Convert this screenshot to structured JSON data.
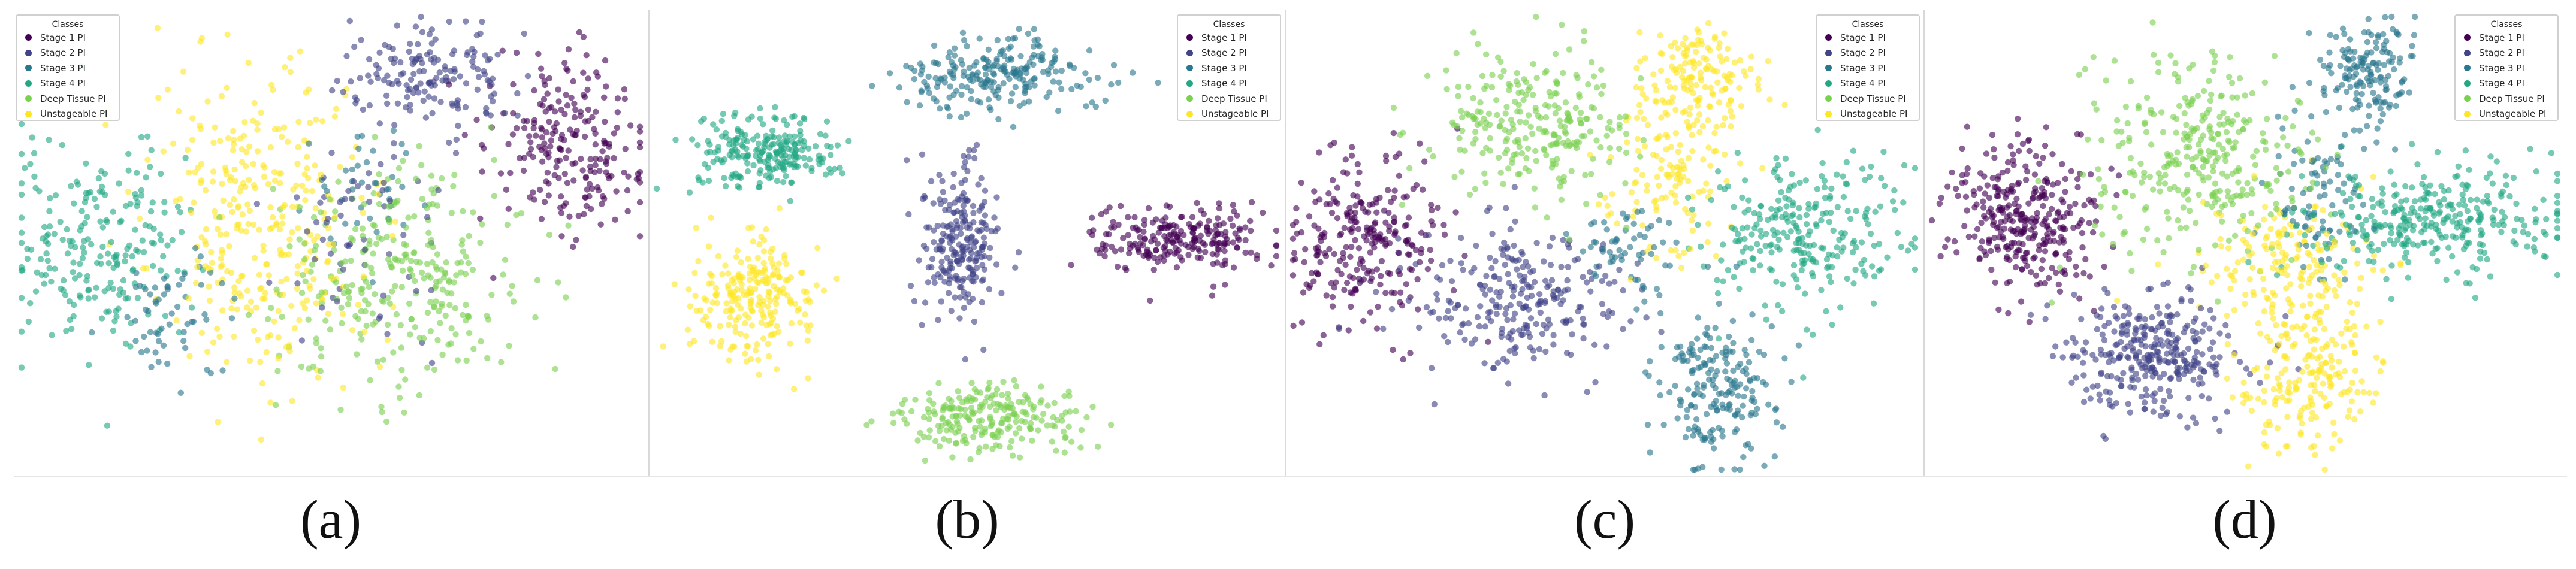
{
  "chart_data": [
    {
      "type": "scatter",
      "caption": "(a)",
      "legend": {
        "title": "Classes",
        "placement": "top-left"
      },
      "series": [
        {
          "name": "Stage 1 PI",
          "color": "#440154",
          "clusters": [
            {
              "cx": 0.88,
              "cy": 0.71,
              "sx": 0.06,
              "sy": 0.1,
              "n": 220
            }
          ]
        },
        {
          "name": "Stage 2 PI",
          "color": "#414487",
          "clusters": [
            {
              "cx": 0.66,
              "cy": 0.86,
              "sx": 0.07,
              "sy": 0.06,
              "n": 160
            },
            {
              "cx": 0.55,
              "cy": 0.5,
              "sx": 0.07,
              "sy": 0.12,
              "n": 60
            }
          ]
        },
        {
          "name": "Stage 3 PI",
          "color": "#2a788e",
          "clusters": [
            {
              "cx": 0.24,
              "cy": 0.34,
              "sx": 0.05,
              "sy": 0.07,
              "n": 60
            },
            {
              "cx": 0.55,
              "cy": 0.62,
              "sx": 0.05,
              "sy": 0.08,
              "n": 40
            }
          ]
        },
        {
          "name": "Stage 4 PI",
          "color": "#22a884",
          "clusters": [
            {
              "cx": 0.12,
              "cy": 0.5,
              "sx": 0.07,
              "sy": 0.12,
              "n": 220
            }
          ]
        },
        {
          "name": "Deep Tissue PI",
          "color": "#7ad151",
          "clusters": [
            {
              "cx": 0.62,
              "cy": 0.42,
              "sx": 0.1,
              "sy": 0.13,
              "n": 300
            }
          ]
        },
        {
          "name": "Unstageable PI",
          "color": "#fde725",
          "clusters": [
            {
              "cx": 0.38,
              "cy": 0.55,
              "sx": 0.09,
              "sy": 0.18,
              "n": 320
            }
          ]
        }
      ],
      "xlim": [
        0,
        1
      ],
      "ylim": [
        0,
        1
      ],
      "grid": false
    },
    {
      "type": "scatter",
      "caption": "(b)",
      "legend": {
        "title": "Classes",
        "placement": "top-right"
      },
      "series": [
        {
          "name": "Stage 1 PI",
          "color": "#440154",
          "clusters": [
            {
              "cx": 0.84,
              "cy": 0.51,
              "sx": 0.07,
              "sy": 0.035,
              "n": 230
            }
          ]
        },
        {
          "name": "Stage 2 PI",
          "color": "#414487",
          "clusters": [
            {
              "cx": 0.49,
              "cy": 0.51,
              "sx": 0.03,
              "sy": 0.09,
              "n": 230
            }
          ]
        },
        {
          "name": "Stage 3 PI",
          "color": "#2a788e",
          "clusters": [
            {
              "cx": 0.55,
              "cy": 0.87,
              "sx": 0.08,
              "sy": 0.04,
              "n": 230
            }
          ]
        },
        {
          "name": "Stage 4 PI",
          "color": "#22a884",
          "clusters": [
            {
              "cx": 0.17,
              "cy": 0.7,
              "sx": 0.06,
              "sy": 0.04,
              "n": 230
            }
          ]
        },
        {
          "name": "Deep Tissue PI",
          "color": "#7ad151",
          "clusters": [
            {
              "cx": 0.53,
              "cy": 0.12,
              "sx": 0.07,
              "sy": 0.04,
              "n": 230
            }
          ]
        },
        {
          "name": "Unstageable PI",
          "color": "#fde725",
          "clusters": [
            {
              "cx": 0.16,
              "cy": 0.38,
              "sx": 0.05,
              "sy": 0.07,
              "n": 230
            }
          ]
        }
      ],
      "xlim": [
        0,
        1
      ],
      "ylim": [
        0,
        1
      ],
      "grid": false
    },
    {
      "type": "scatter",
      "caption": "(c)",
      "legend": {
        "title": "Classes",
        "placement": "top-right"
      },
      "series": [
        {
          "name": "Stage 1 PI",
          "color": "#440154",
          "clusters": [
            {
              "cx": 0.12,
              "cy": 0.52,
              "sx": 0.06,
              "sy": 0.1,
              "n": 260
            }
          ]
        },
        {
          "name": "Stage 2 PI",
          "color": "#414487",
          "clusters": [
            {
              "cx": 0.37,
              "cy": 0.37,
              "sx": 0.09,
              "sy": 0.08,
              "n": 260
            }
          ]
        },
        {
          "name": "Stage 3 PI",
          "color": "#2a788e",
          "clusters": [
            {
              "cx": 0.68,
              "cy": 0.18,
              "sx": 0.05,
              "sy": 0.08,
              "n": 200
            },
            {
              "cx": 0.55,
              "cy": 0.48,
              "sx": 0.05,
              "sy": 0.05,
              "n": 60
            }
          ]
        },
        {
          "name": "Stage 4 PI",
          "color": "#22a884",
          "clusters": [
            {
              "cx": 0.82,
              "cy": 0.52,
              "sx": 0.08,
              "sy": 0.09,
              "n": 260
            }
          ]
        },
        {
          "name": "Deep Tissue PI",
          "color": "#7ad151",
          "clusters": [
            {
              "cx": 0.38,
              "cy": 0.76,
              "sx": 0.08,
              "sy": 0.09,
              "n": 260
            }
          ]
        },
        {
          "name": "Unstageable PI",
          "color": "#fde725",
          "clusters": [
            {
              "cx": 0.66,
              "cy": 0.86,
              "sx": 0.05,
              "sy": 0.06,
              "n": 150
            },
            {
              "cx": 0.6,
              "cy": 0.64,
              "sx": 0.06,
              "sy": 0.08,
              "n": 120
            }
          ]
        }
      ],
      "xlim": [
        0,
        1
      ],
      "ylim": [
        0,
        1
      ],
      "grid": false
    },
    {
      "type": "scatter",
      "caption": "(d)",
      "legend": {
        "title": "Classes",
        "placement": "top-right"
      },
      "series": [
        {
          "name": "Stage 1 PI",
          "color": "#440154",
          "clusters": [
            {
              "cx": 0.15,
              "cy": 0.56,
              "sx": 0.06,
              "sy": 0.08,
              "n": 320
            }
          ]
        },
        {
          "name": "Stage 2 PI",
          "color": "#414487",
          "clusters": [
            {
              "cx": 0.35,
              "cy": 0.25,
              "sx": 0.07,
              "sy": 0.07,
              "n": 320
            }
          ]
        },
        {
          "name": "Stage 3 PI",
          "color": "#2a788e",
          "clusters": [
            {
              "cx": 0.7,
              "cy": 0.88,
              "sx": 0.04,
              "sy": 0.06,
              "n": 160
            },
            {
              "cx": 0.62,
              "cy": 0.6,
              "sx": 0.04,
              "sy": 0.07,
              "n": 80
            }
          ]
        },
        {
          "name": "Stage 4 PI",
          "color": "#22a884",
          "clusters": [
            {
              "cx": 0.8,
              "cy": 0.55,
              "sx": 0.1,
              "sy": 0.06,
              "n": 320
            }
          ]
        },
        {
          "name": "Deep Tissue PI",
          "color": "#7ad151",
          "clusters": [
            {
              "cx": 0.43,
              "cy": 0.68,
              "sx": 0.09,
              "sy": 0.12,
              "n": 320
            }
          ]
        },
        {
          "name": "Unstageable PI",
          "color": "#fde725",
          "clusters": [
            {
              "cx": 0.6,
              "cy": 0.22,
              "sx": 0.06,
              "sy": 0.08,
              "n": 200
            },
            {
              "cx": 0.57,
              "cy": 0.45,
              "sx": 0.08,
              "sy": 0.07,
              "n": 160
            }
          ]
        }
      ],
      "xlim": [
        0,
        1
      ],
      "ylim": [
        0,
        1
      ],
      "grid": false
    }
  ]
}
